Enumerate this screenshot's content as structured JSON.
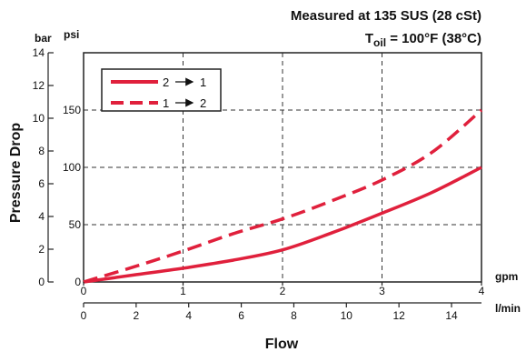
{
  "chart_data": {
    "type": "line",
    "title_line1": "Measured at 135 SUS (28 cSt)",
    "title_line2": {
      "prefix": "T",
      "subscript": "oil",
      "suffix": " = 100°F  (38°C)"
    },
    "ylabel": "Pressure Drop",
    "xlabel": "Flow",
    "y_axis_psi": {
      "unit": "psi",
      "ticks": [
        "0",
        "50",
        "100",
        "150"
      ],
      "range": [
        0,
        200
      ]
    },
    "y_axis_bar": {
      "unit": "bar",
      "ticks": [
        "0",
        "2",
        "4",
        "6",
        "8",
        "10",
        "12",
        "14"
      ],
      "range": [
        0,
        14
      ]
    },
    "x_axis_gpm": {
      "unit": "gpm",
      "ticks": [
        "0",
        "1",
        "2",
        "3",
        "4"
      ],
      "range": [
        0,
        4
      ]
    },
    "x_axis_lpm": {
      "unit": "l/min",
      "ticks": [
        "0",
        "2",
        "4",
        "6",
        "8",
        "10",
        "12",
        "14"
      ],
      "range": [
        0,
        15.14
      ]
    },
    "grid": true,
    "legend_position": "top-left",
    "series": [
      {
        "name": "2 → 1",
        "legend_from": "2",
        "legend_to": "1",
        "style": "solid",
        "color": "#e0203c",
        "x": [
          0,
          0.5,
          1.0,
          1.5,
          2.0,
          2.5,
          3.0,
          3.5,
          4.0
        ],
        "y": [
          0,
          6,
          12,
          19,
          28,
          43,
          60,
          78,
          100
        ]
      },
      {
        "name": "1 → 2",
        "legend_from": "1",
        "legend_to": "2",
        "style": "dashed",
        "color": "#e0203c",
        "x": [
          0,
          0.5,
          1.0,
          1.5,
          2.0,
          2.5,
          3.0,
          3.5,
          4.0
        ],
        "y": [
          0,
          13,
          27,
          42,
          55,
          71,
          89,
          113,
          150
        ]
      }
    ]
  }
}
